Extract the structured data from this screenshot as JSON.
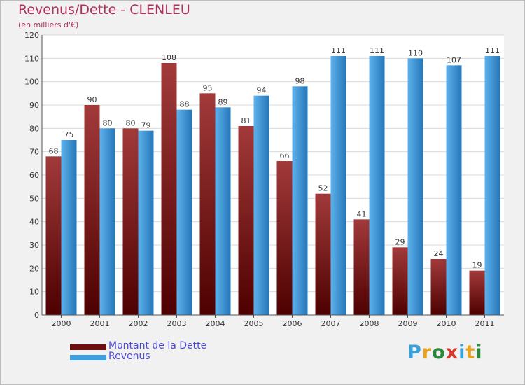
{
  "title": "Revenus/Dette - CLENLEU",
  "subtitle": "(en milliers d'€)",
  "logo": {
    "text": "Proxiti",
    "colors": [
      "#3aa0d9",
      "#e8a21d",
      "#2a8a3c",
      "#d63a2f",
      "#3aa0d9",
      "#e8a21d",
      "#2a8a3c"
    ]
  },
  "legend": [
    {
      "label": "Montant de la Dette",
      "color": "#6b0f0f"
    },
    {
      "label": "Revenus",
      "color": "#3e9ede"
    }
  ],
  "colors": {
    "debt_light": "#a23a3a",
    "debt_dark": "#4e0000",
    "rev_light": "#5db2ec",
    "rev_dark": "#2676b8",
    "grid": "#ffffff",
    "axis": "#555555",
    "text": "#333333"
  },
  "chart_data": {
    "type": "bar",
    "categories": [
      "2000",
      "2001",
      "2002",
      "2003",
      "2004",
      "2005",
      "2006",
      "2007",
      "2008",
      "2009",
      "2010",
      "2011"
    ],
    "series": [
      {
        "name": "Montant de la Dette",
        "values": [
          68,
          90,
          80,
          108,
          95,
          81,
          66,
          52,
          41,
          29,
          24,
          19
        ]
      },
      {
        "name": "Revenus",
        "values": [
          75,
          80,
          79,
          88,
          89,
          94,
          98,
          111,
          111,
          110,
          107,
          111
        ]
      }
    ],
    "yticks": [
      0,
      10,
      20,
      30,
      40,
      50,
      60,
      70,
      80,
      90,
      100,
      110,
      120
    ],
    "ylim": [
      0,
      120
    ],
    "grid": true,
    "legend_position": "bottom-left"
  }
}
